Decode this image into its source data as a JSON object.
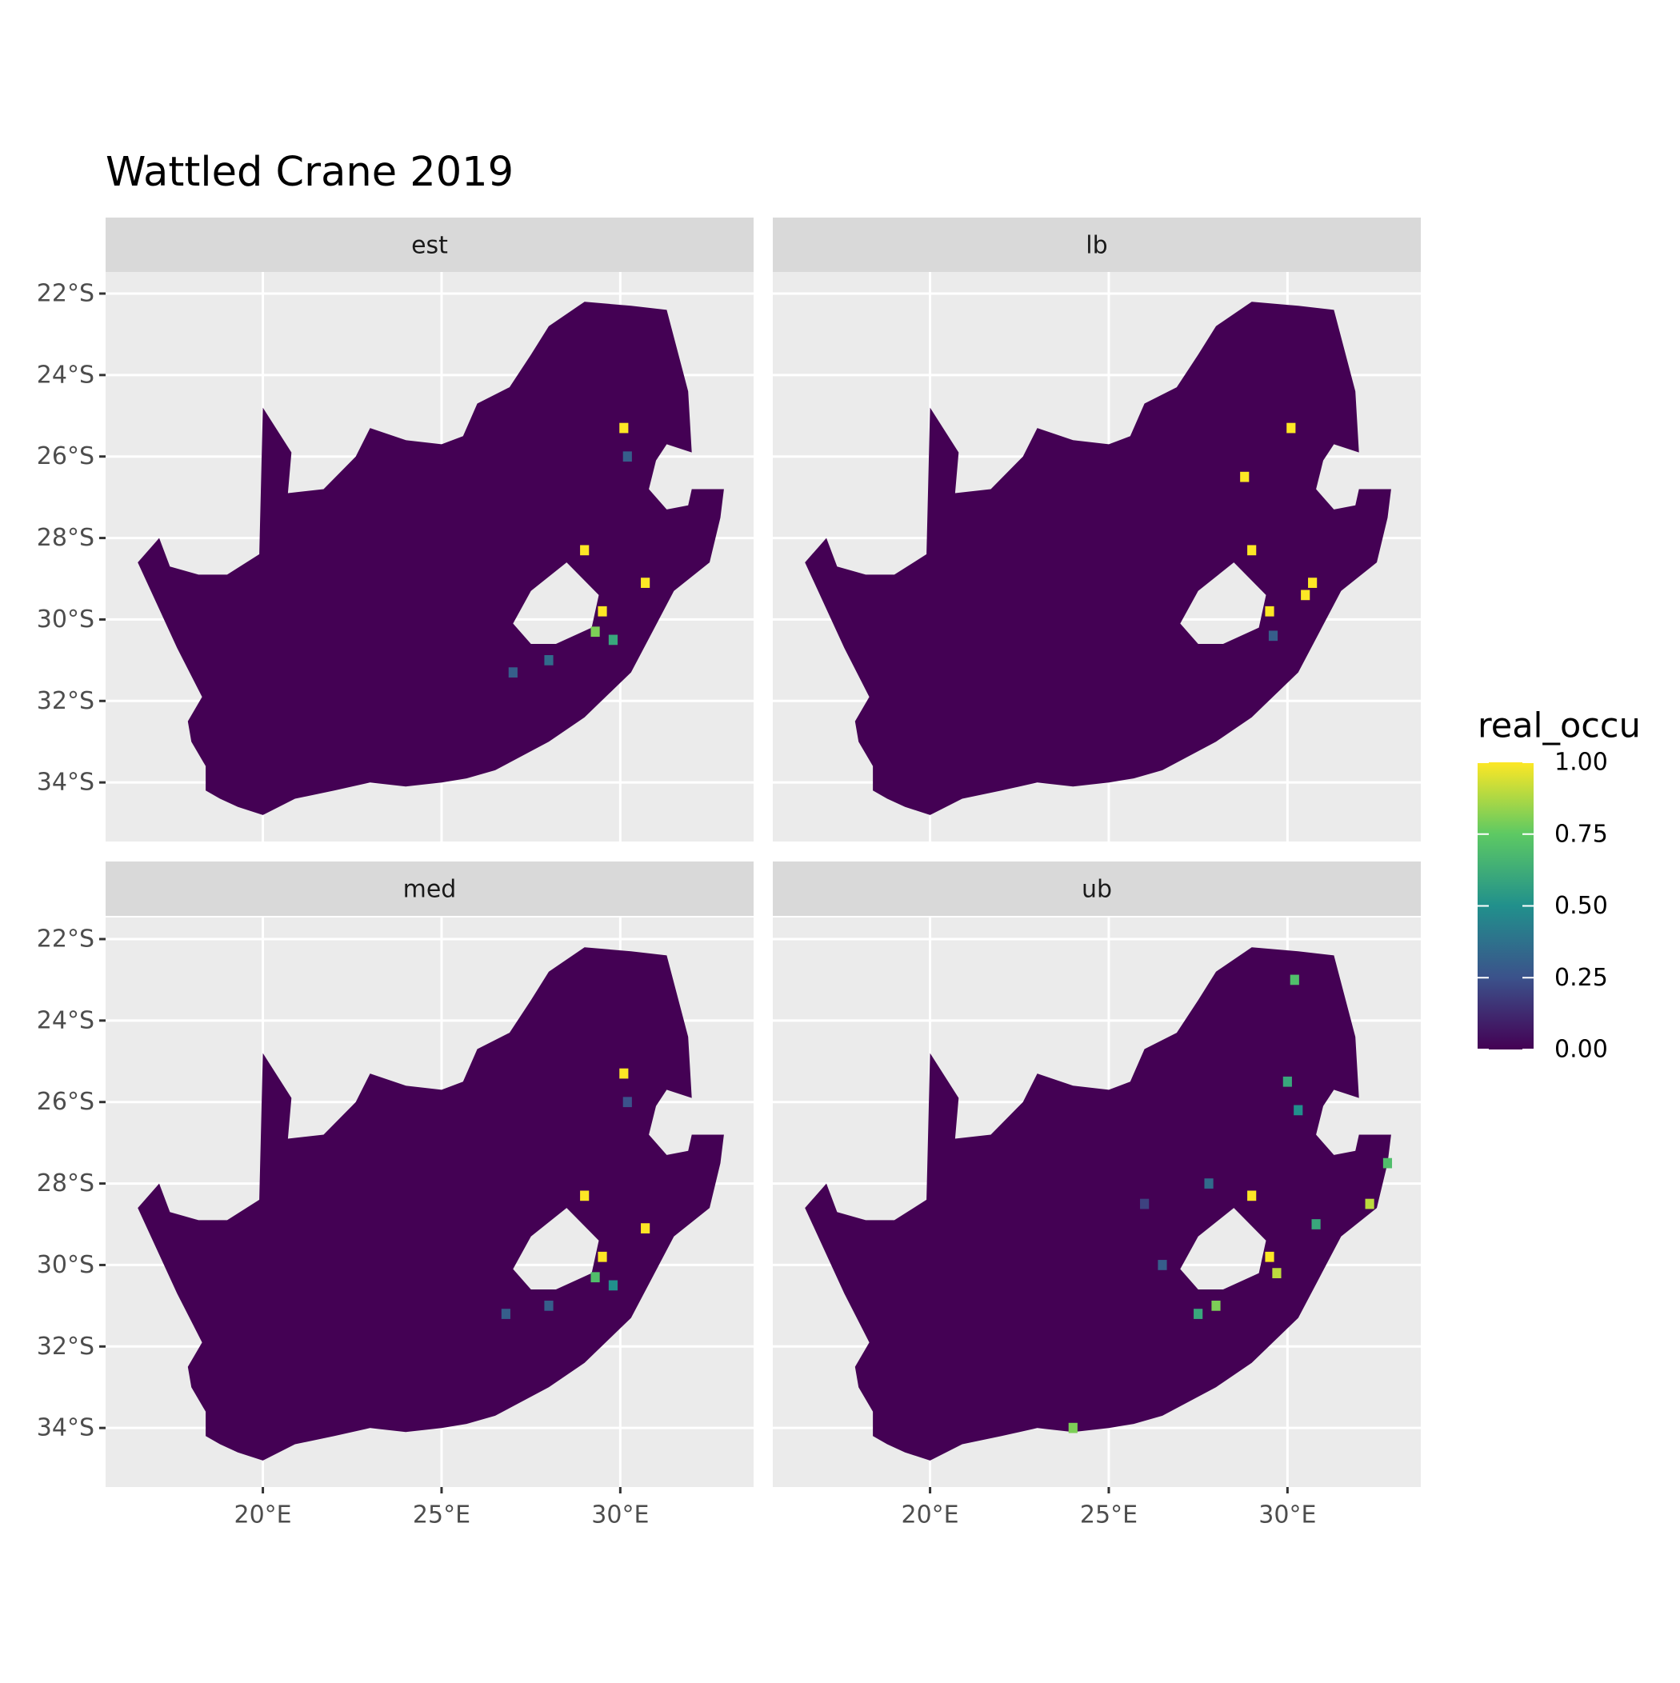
{
  "chart_data": {
    "type": "map",
    "title": "Wattled Crane 2019",
    "xlim": [
      15.6,
      33.73
    ],
    "ylim": [
      -35.45,
      -21.47
    ],
    "xticks": [
      {
        "value": 20,
        "label": "20°E"
      },
      {
        "value": 25,
        "label": "25°E"
      },
      {
        "value": 30,
        "label": "30°E"
      }
    ],
    "yticks": [
      {
        "value": -22,
        "label": "22°S"
      },
      {
        "value": -24,
        "label": "24°S"
      },
      {
        "value": -26,
        "label": "26°S"
      },
      {
        "value": -28,
        "label": "28°S"
      },
      {
        "value": -30,
        "label": "30°S"
      },
      {
        "value": -32,
        "label": "32°S"
      },
      {
        "value": -34,
        "label": "34°S"
      }
    ],
    "grid": true,
    "legend": {
      "title": "real_occu",
      "clim": [
        0,
        1
      ],
      "colorscale": [
        "#440154",
        "#3b528b",
        "#21908c",
        "#5dc963",
        "#fde725"
      ],
      "ticks": [
        {
          "value": 1,
          "label": "1.00"
        },
        {
          "value": 0.75,
          "label": "0.75"
        },
        {
          "value": 0.5,
          "label": "0.50"
        },
        {
          "value": 0.25,
          "label": "0.25"
        },
        {
          "value": 0,
          "label": "0.00"
        }
      ]
    },
    "facets": [
      {
        "name": "est",
        "cells": {
          "x": [
            29.5,
            29.3,
            29.0,
            30.1,
            29.8,
            28.0,
            30.2,
            27.0,
            30.7
          ],
          "y": [
            -29.8,
            -30.3,
            -28.3,
            -25.3,
            -30.5,
            -31.0,
            -26.0,
            -31.3,
            -29.1
          ],
          "values": [
            1,
            0.8,
            1,
            1,
            0.6,
            0.35,
            0.3,
            0.3,
            1
          ]
        }
      },
      {
        "name": "lb",
        "cells": {
          "x": [
            29.5,
            30.1,
            29.0,
            30.5,
            28.8,
            29.6,
            30.7
          ],
          "y": [
            -29.8,
            -25.3,
            -28.3,
            -29.4,
            -26.5,
            -30.4,
            -29.1
          ],
          "values": [
            1,
            1,
            1,
            1,
            1,
            0.3,
            1
          ]
        }
      },
      {
        "name": "med",
        "cells": {
          "x": [
            29.5,
            29.3,
            29.0,
            30.1,
            29.8,
            28.0,
            30.2,
            26.8,
            30.7
          ],
          "y": [
            -29.8,
            -30.3,
            -28.3,
            -25.3,
            -30.5,
            -31.0,
            -26.0,
            -31.2,
            -29.1
          ],
          "values": [
            1,
            0.7,
            1,
            1,
            0.5,
            0.3,
            0.25,
            0.3,
            1
          ]
        }
      },
      {
        "name": "ub",
        "cells": {
          "x": [
            29.5,
            29.7,
            28.0,
            27.5,
            30.0,
            30.3,
            32.3,
            32.8,
            27.8,
            26.5,
            30.2,
            24.0,
            30.8,
            29.0,
            26.0
          ],
          "y": [
            -29.8,
            -30.2,
            -31.0,
            -31.2,
            -25.5,
            -26.2,
            -28.5,
            -27.5,
            -28.0,
            -30.0,
            -23.0,
            -34.0,
            -29.0,
            -28.3,
            -28.5
          ],
          "values": [
            1,
            0.9,
            0.8,
            0.6,
            0.6,
            0.5,
            0.9,
            0.7,
            0.35,
            0.3,
            0.7,
            0.8,
            0.6,
            1,
            0.2
          ]
        }
      }
    ]
  }
}
